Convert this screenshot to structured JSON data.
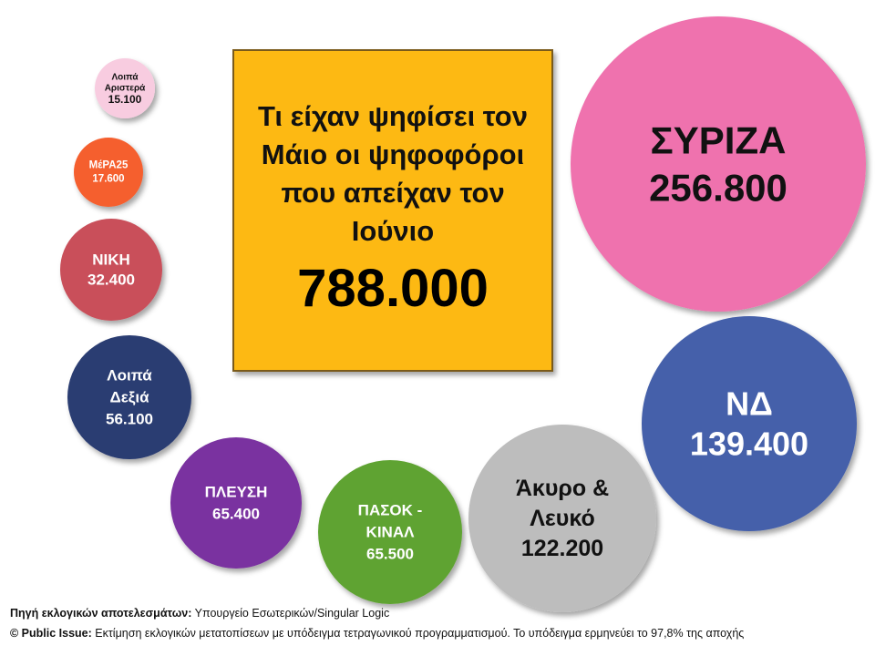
{
  "title": {
    "text": "Τι είχαν ψηφίσει τον Μάιο οι ψηφοφόροι που απείχαν τον Ιούνιο",
    "total": "788.000"
  },
  "colors": {
    "title_box": "#FDB913",
    "syriza": "#EF72AE",
    "nd": "#4560AA",
    "akyro": "#BDBDBD",
    "pasok": "#5FA331",
    "plefsi": "#7A33A0",
    "loipa_dexia": "#2C3C72",
    "niki": "#C9505A",
    "mera25": "#F55E2E",
    "loipa_aristera": "#F8CCE0"
  },
  "chart_data": {
    "type": "bubble",
    "title": "Τι είχαν ψηφίσει τον Μάιο οι ψηφοφόροι που απείχαν τον Ιούνιο",
    "total": 788000,
    "series": [
      {
        "key": "syriza",
        "label_lines": [
          "ΣΥΡΙΖΑ"
        ],
        "value": 256800,
        "value_label": "256.800"
      },
      {
        "key": "nd",
        "label_lines": [
          "ΝΔ"
        ],
        "value": 139400,
        "value_label": "139.400"
      },
      {
        "key": "akyro",
        "label_lines": [
          "Άκυρο &",
          "Λευκό"
        ],
        "value": 122200,
        "value_label": "122.200"
      },
      {
        "key": "pasok",
        "label_lines": [
          "ΠΑΣΟΚ -",
          "ΚΙΝΑΛ"
        ],
        "value": 65500,
        "value_label": "65.500"
      },
      {
        "key": "plefsi",
        "label_lines": [
          "ΠΛΕΥΣΗ"
        ],
        "value": 65400,
        "value_label": "65.400"
      },
      {
        "key": "loipa_dexia",
        "label_lines": [
          "Λοιπά",
          "Δεξιά"
        ],
        "value": 56100,
        "value_label": "56.100"
      },
      {
        "key": "niki",
        "label_lines": [
          "ΝΙΚΗ"
        ],
        "value": 32400,
        "value_label": "32.400"
      },
      {
        "key": "mera25",
        "label_lines": [
          "ΜέΡΑ25"
        ],
        "value": 17600,
        "value_label": "17.600"
      },
      {
        "key": "loipa_aristera",
        "label_lines": [
          "Λοιπά",
          "Αριστερά"
        ],
        "value": 15100,
        "value_label": "15.100"
      }
    ]
  },
  "footer": {
    "source_label": "Πηγή εκλογικών αποτελεσμάτων:",
    "source_text": " Υπουργείο Εσωτερικών/Singular Logic",
    "copyright_label": "© Public Issue:",
    "copyright_text": " Εκτίμηση εκλογικών μετατοπίσεων με υπόδειγμα τετραγωνικού προγραμματισμού. Το υπόδειγμα ερμηνεύει το 97,8% της αποχής"
  }
}
